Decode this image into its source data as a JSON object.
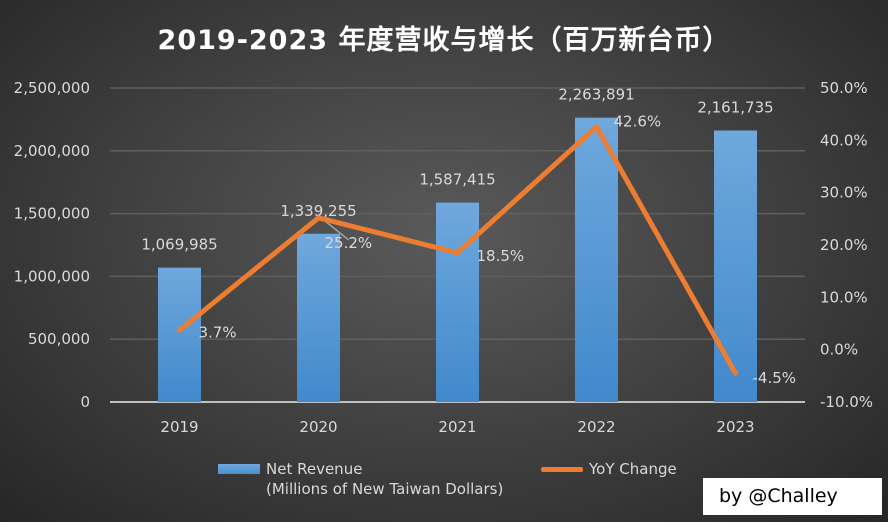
{
  "chart_data": {
    "type": "bar+line",
    "title": "2019-2023 年度营收与增长（百万新台币）",
    "categories": [
      "2019",
      "2020",
      "2021",
      "2022",
      "2023"
    ],
    "series": [
      {
        "name": "Net Revenue",
        "name_line2": "(Millions of New Taiwan Dollars)",
        "type": "bar",
        "axis": "left",
        "values": [
          1069985,
          1339255,
          1587415,
          2263891,
          2161735
        ],
        "labels": [
          "1,069,985",
          "1,339,255",
          "1,587,415",
          "2,263,891",
          "2,161,735"
        ],
        "color": "#5b9bd5"
      },
      {
        "name": "YoY Change",
        "type": "line",
        "axis": "right",
        "values": [
          3.7,
          25.2,
          18.5,
          42.6,
          -4.5
        ],
        "labels": [
          "3.7%",
          "25.2%",
          "18.5%",
          "42.6%",
          "-4.5%"
        ],
        "color": "#ed7d31"
      }
    ],
    "y_left": {
      "range": [
        0,
        2500000
      ],
      "ticks": [
        "0",
        "500,000",
        "1,000,000",
        "1,500,000",
        "2,000,000",
        "2,500,000"
      ]
    },
    "y_right": {
      "range": [
        -10,
        50
      ],
      "ticks": [
        "-10.0%",
        "0.0%",
        "10.0%",
        "20.0%",
        "30.0%",
        "40.0%",
        "50.0%"
      ]
    },
    "grid": true,
    "legend": "bottom"
  },
  "credit": "by @Challey"
}
